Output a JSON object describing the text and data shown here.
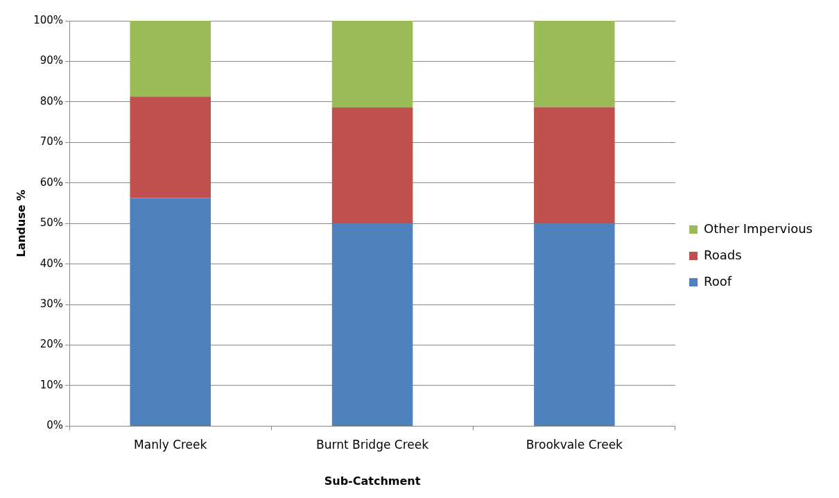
{
  "chart_data": {
    "type": "bar",
    "stacked": true,
    "xlabel": "Sub-Catchment",
    "ylabel": "Landuse %",
    "categories": [
      "Manly Creek",
      "Burnt Bridge Creek",
      "Brookvale Creek"
    ],
    "series": [
      {
        "name": "Roof",
        "color": "#4f81bd",
        "values": [
          56.3,
          50,
          50
        ]
      },
      {
        "name": "Roads",
        "color": "#c0504d",
        "values": [
          25,
          28.6,
          28.7
        ]
      },
      {
        "name": "Other Impervious",
        "color": "#9bbb59",
        "values": [
          18.7,
          21.4,
          21.3
        ]
      }
    ],
    "ylim": [
      0,
      100
    ],
    "yticks": [
      {
        "value": 0,
        "label": "0%"
      },
      {
        "value": 10,
        "label": "10%"
      },
      {
        "value": 20,
        "label": "20%"
      },
      {
        "value": 30,
        "label": "30%"
      },
      {
        "value": 40,
        "label": "40%"
      },
      {
        "value": 50,
        "label": "50%"
      },
      {
        "value": 60,
        "label": "60%"
      },
      {
        "value": 70,
        "label": "70%"
      },
      {
        "value": 80,
        "label": "80%"
      },
      {
        "value": 90,
        "label": "90%"
      },
      {
        "value": 100,
        "label": "100%"
      }
    ],
    "grid": "y",
    "legend": "right"
  }
}
